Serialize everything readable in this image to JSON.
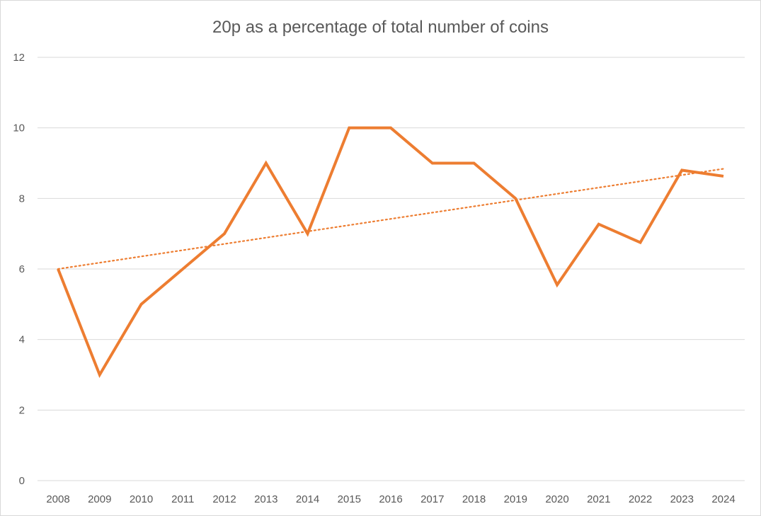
{
  "chart_data": {
    "type": "line",
    "title": "20p as a percentage of total number of coins",
    "xlabel": "",
    "ylabel": "",
    "categories": [
      "2008",
      "2009",
      "2010",
      "2011",
      "2012",
      "2013",
      "2014",
      "2015",
      "2016",
      "2017",
      "2018",
      "2019",
      "2020",
      "2021",
      "2022",
      "2023",
      "2024"
    ],
    "series": [
      {
        "values": [
          6,
          3,
          5,
          6,
          7,
          9,
          7,
          10,
          10,
          9,
          9,
          8,
          5.55,
          7.27,
          6.75,
          8.8,
          8.63
        ],
        "color": "#ed7d31"
      }
    ],
    "trendline": {
      "type": "linear",
      "start": 6.0,
      "end": 8.84,
      "style": "dotted",
      "color": "#ed7d31"
    },
    "yticks": [
      "0",
      "2",
      "4",
      "6",
      "8",
      "10",
      "12"
    ],
    "ylim": [
      0,
      12
    ],
    "grid": "horizontal",
    "legend": "none"
  }
}
